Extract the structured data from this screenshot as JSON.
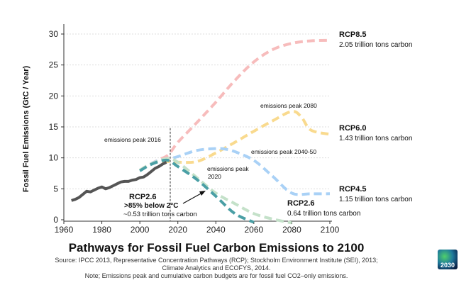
{
  "chart_data": {
    "type": "line",
    "title": "Pathways for Fossil Fuel Carbon Emissions to 2100",
    "ylabel": "Fossil Fuel Emissions (GtC / Year)",
    "xlabel": "",
    "xlim": [
      1960,
      2100
    ],
    "ylim": [
      0,
      30
    ],
    "x_ticks": [
      "1960",
      "1980",
      "2000",
      "2020",
      "2040",
      "2060",
      "2080",
      "2100"
    ],
    "y_ticks": [
      "0",
      "5",
      "10",
      "15",
      "20",
      "25",
      "30"
    ],
    "grid": "horizontal dashed",
    "historical": {
      "color": "#555555",
      "x": [
        1964,
        1966,
        1968,
        1970,
        1972,
        1974,
        1976,
        1978,
        1980,
        1982,
        1984,
        1986,
        1988,
        1990,
        1992,
        1994,
        1996,
        1998,
        2000,
        2002,
        2004,
        2006,
        2008,
        2010,
        2012,
        2014
      ],
      "y": [
        3.1,
        3.3,
        3.6,
        4.1,
        4.6,
        4.5,
        4.8,
        5.1,
        5.3,
        5.0,
        5.2,
        5.5,
        5.8,
        6.1,
        6.2,
        6.2,
        6.4,
        6.5,
        6.8,
        6.9,
        7.3,
        7.8,
        8.3,
        8.6,
        9.0,
        9.3
      ]
    },
    "series": [
      {
        "name": "RCP8.5",
        "description": "2.05 trillion tons carbon",
        "color": "#f7bcbc",
        "x": [
          2000,
          2005,
          2010,
          2015,
          2020,
          2030,
          2040,
          2050,
          2060,
          2070,
          2080,
          2090,
          2100
        ],
        "y": [
          8.0,
          8.9,
          9.7,
          10.5,
          12.5,
          15.7,
          19.0,
          22.5,
          25.5,
          27.5,
          28.5,
          28.9,
          29.0
        ]
      },
      {
        "name": "RCP6.0",
        "description": "1.43 trillion tons carbon",
        "color": "#f9da8e",
        "x": [
          2000,
          2005,
          2010,
          2015,
          2020,
          2030,
          2040,
          2050,
          2060,
          2070,
          2080,
          2085,
          2090,
          2100
        ],
        "y": [
          8.0,
          8.9,
          9.4,
          9.4,
          9.3,
          9.4,
          10.8,
          12.5,
          14.3,
          16.0,
          17.5,
          16.6,
          14.5,
          13.8
        ]
      },
      {
        "name": "RCP4.5",
        "description": "1.15 trillion tons carbon",
        "color": "#a9d1f6",
        "x": [
          2000,
          2005,
          2010,
          2015,
          2020,
          2030,
          2040,
          2045,
          2050,
          2060,
          2070,
          2080,
          2090,
          2100
        ],
        "y": [
          8.0,
          8.9,
          9.6,
          9.8,
          10.2,
          11.2,
          11.5,
          11.4,
          11.0,
          9.6,
          7.0,
          4.3,
          4.2,
          4.2
        ]
      },
      {
        "name": "RCP2.6",
        "description": "0.64 trillion tons carbon",
        "color": "#c4e1c9",
        "x": [
          2000,
          2005,
          2010,
          2015,
          2020,
          2030,
          2040,
          2050,
          2060,
          2070,
          2080
        ],
        "y": [
          8.0,
          8.9,
          9.5,
          9.9,
          9.3,
          6.8,
          4.3,
          2.6,
          1.0,
          0.1,
          -0.5
        ]
      },
      {
        "name": "RCP2.6",
        "description": ">85% below 2°C ~0.53 trillion tons carbon",
        "color": "#4a9fa5",
        "x": [
          2000,
          2005,
          2010,
          2015,
          2020,
          2030,
          2040,
          2050,
          2060
        ],
        "y": [
          7.9,
          8.8,
          9.4,
          9.6,
          8.6,
          6.5,
          3.8,
          1.0,
          -0.4
        ]
      }
    ],
    "annotations": [
      {
        "text": "emissions peak 2016",
        "x": 2016
      },
      {
        "text": "emissions peak 2080"
      },
      {
        "text": "emissions peak 2040-50"
      },
      {
        "text": "emissions peak 2020"
      }
    ],
    "marker_year": 2016
  },
  "labels": {
    "rcp85_name": "RCP8.5",
    "rcp85_desc": "2.05 trillion tons carbon",
    "rcp60_name": "RCP6.0",
    "rcp60_desc": "1.43 trillion tons carbon",
    "rcp45_name": "RCP4.5",
    "rcp45_desc": "1.15 trillion tons carbon",
    "rcp26_name": "RCP2.6",
    "rcp26_desc": "0.64 trillion tons carbon",
    "rcp26b_name": "RCP2.6",
    "rcp26b_line1": ">85% below 2°C",
    "rcp26b_line2": "~0.53 trillion tons carbon",
    "peak_2016": "emissions peak 2016",
    "peak_2080": "emissions peak 2080",
    "peak_2040": "emissions peak 2040-50",
    "peak_2020_a": "emissions peak",
    "peak_2020_b": "2020"
  },
  "footer": {
    "title": "Pathways for Fossil Fuel Carbon Emissions to 2100",
    "source_1": "Source: IPCC 2013, Representative Concentration Pathways (RCP); Stockholm Environment Institute (SEI), 2013;",
    "source_2": "Climate Analytics and ECOFYS, 2014.",
    "note": "Note; Emissions peak and cumulative carbon budgets are for fossil fuel CO2–only emissions.",
    "logo_text": "2030"
  }
}
